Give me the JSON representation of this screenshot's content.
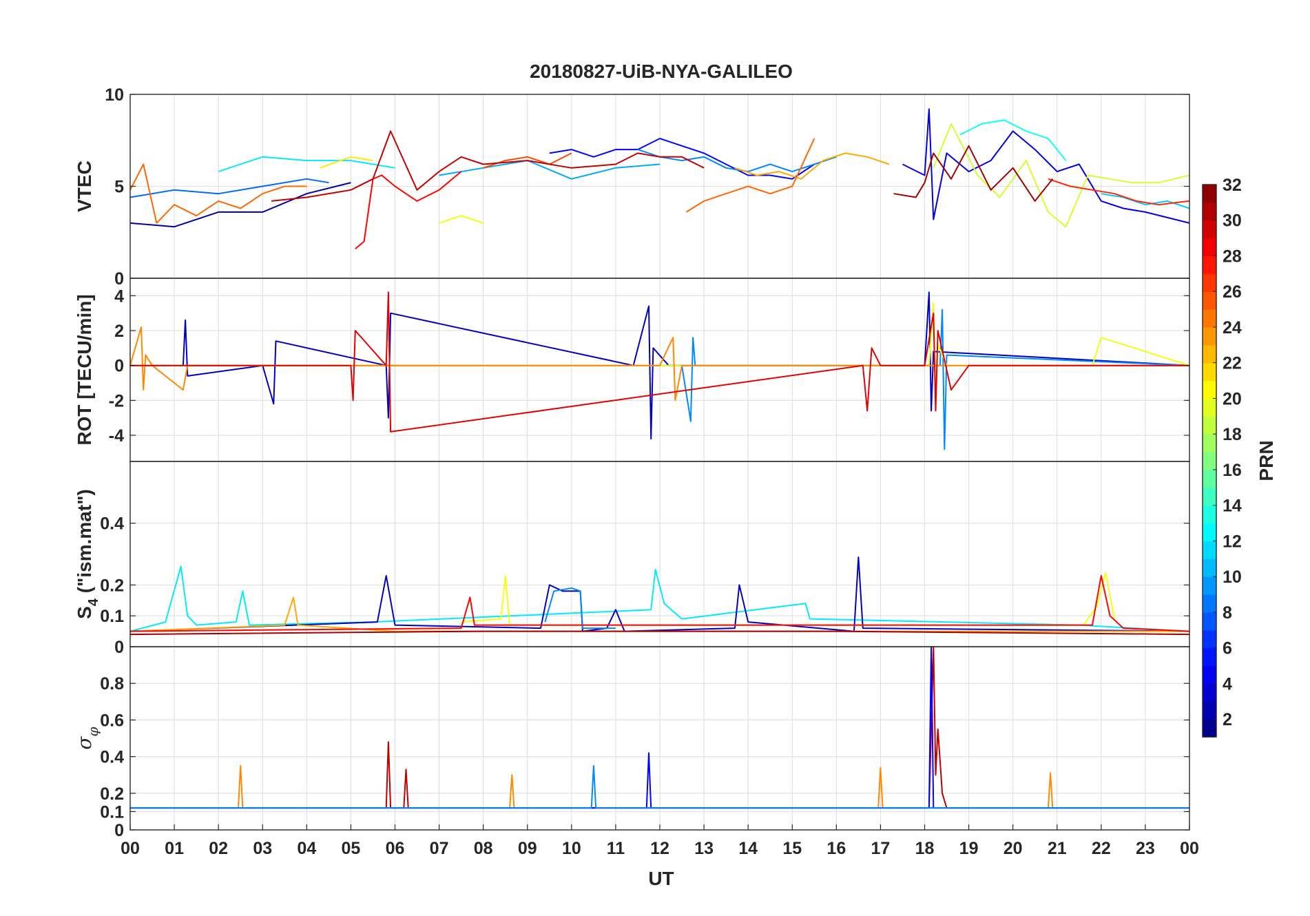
{
  "chart_data": {
    "type": "line",
    "title": "20180827-UiB-NYA-GALILEO",
    "xlabel": "UT",
    "x_unit": "hours (UT)",
    "xlim": [
      0,
      24
    ],
    "x_tick_labels": [
      "00",
      "01",
      "02",
      "03",
      "04",
      "05",
      "06",
      "07",
      "08",
      "09",
      "10",
      "11",
      "12",
      "13",
      "14",
      "15",
      "16",
      "17",
      "18",
      "19",
      "20",
      "21",
      "22",
      "23",
      "00"
    ],
    "grid": true,
    "colorbar": {
      "label": "PRN",
      "colormap": "jet",
      "range": [
        1,
        32
      ],
      "ticks": [
        2,
        4,
        6,
        8,
        10,
        12,
        14,
        16,
        18,
        20,
        22,
        24,
        26,
        28,
        30,
        32
      ]
    },
    "panels": [
      {
        "id": "vtec",
        "ylabel": "VTEC",
        "ylim": [
          0,
          10
        ],
        "yticks": [
          0,
          5,
          10
        ],
        "series": [
          {
            "prn": 2,
            "x": [
              0,
              1,
              2,
              3,
              4,
              5
            ],
            "y": [
              3.0,
              2.8,
              3.6,
              3.6,
              4.6,
              5.2
            ]
          },
          {
            "prn": 5,
            "x": [
              9.5,
              10,
              10.5,
              11,
              11.5,
              12,
              12.5,
              13,
              13.5,
              14,
              14.5,
              15,
              15.5
            ],
            "y": [
              6.8,
              7.0,
              6.6,
              7.0,
              7.0,
              7.6,
              7.2,
              6.8,
              6.2,
              5.6,
              5.6,
              5.4,
              6.2
            ]
          },
          {
            "prn": 4,
            "x": [
              17.5,
              18,
              18.1,
              18.2,
              18.5,
              19,
              19.5,
              20,
              20.5,
              21,
              21.5,
              22,
              22.5,
              23,
              24
            ],
            "y": [
              6.2,
              5.6,
              9.2,
              3.2,
              6.8,
              5.8,
              6.4,
              8.0,
              7.0,
              5.8,
              6.2,
              4.2,
              3.8,
              3.6,
              3.0
            ]
          },
          {
            "prn": 8,
            "x": [
              0,
              1,
              2,
              3,
              4,
              4.5
            ],
            "y": [
              4.4,
              4.8,
              4.6,
              5.0,
              5.4,
              5.2
            ]
          },
          {
            "prn": 9,
            "x": [
              11.5,
              12,
              12.5,
              13,
              13.5,
              14,
              14.5,
              15,
              15.5,
              16
            ],
            "y": [
              7.0,
              6.6,
              6.4,
              6.6,
              6.0,
              5.8,
              6.2,
              5.8,
              6.2,
              6.6
            ]
          },
          {
            "prn": 10,
            "x": [
              7,
              8,
              9,
              10,
              11,
              12
            ],
            "y": [
              5.6,
              6.0,
              6.4,
              5.4,
              6.0,
              6.2
            ]
          },
          {
            "prn": 12,
            "x": [
              2,
              3,
              4,
              5,
              6
            ],
            "y": [
              5.8,
              6.6,
              6.4,
              6.4,
              6.0
            ]
          },
          {
            "prn": 13,
            "x": [
              18.8,
              19.3,
              19.8,
              20.3,
              20.8,
              21.2
            ],
            "y": [
              7.8,
              8.4,
              8.6,
              8.0,
              7.6,
              6.4
            ]
          },
          {
            "prn": 11,
            "x": [
              22,
              22.5,
              23,
              23.5,
              24
            ],
            "y": [
              4.6,
              4.4,
              4.0,
              4.2,
              3.8
            ]
          },
          {
            "prn": 20,
            "x": [
              7,
              7.5,
              8
            ],
            "y": [
              3.0,
              3.4,
              3.0
            ]
          },
          {
            "prn": 21,
            "x": [
              4.3,
              5,
              5.5
            ],
            "y": [
              6.0,
              6.6,
              6.4
            ]
          },
          {
            "prn": 19,
            "x": [
              18.2,
              18.6,
              19.2,
              19.7,
              20.3,
              20.8,
              21.2,
              21.7,
              22.2,
              22.7,
              23.3,
              24
            ],
            "y": [
              6.0,
              8.4,
              5.6,
              4.4,
              6.4,
              3.6,
              2.8,
              5.6,
              5.4,
              5.2,
              5.2,
              5.6
            ]
          },
          {
            "prn": 23,
            "x": [
              13.7,
              14.2,
              14.7,
              15.2,
              15.7,
              16.2,
              16.7,
              17.2
            ],
            "y": [
              6.0,
              5.6,
              5.8,
              5.4,
              6.4,
              6.8,
              6.6,
              6.2
            ]
          },
          {
            "prn": 25,
            "x": [
              0,
              0.3,
              0.6,
              1,
              1.5,
              2,
              2.5,
              3,
              3.5,
              4
            ],
            "y": [
              4.8,
              6.2,
              3.0,
              4.0,
              3.4,
              4.2,
              3.8,
              4.6,
              5.0,
              5.0
            ]
          },
          {
            "prn": 25,
            "x": [
              12.6,
              13,
              13.5,
              14,
              14.5,
              15,
              15.5
            ],
            "y": [
              3.6,
              4.2,
              4.6,
              5.0,
              4.6,
              5.0,
              7.6
            ]
          },
          {
            "prn": 26,
            "x": [
              8,
              8.5,
              9,
              9.5,
              10
            ],
            "y": [
              6.0,
              6.4,
              6.6,
              6.2,
              6.8
            ]
          },
          {
            "prn": 28,
            "x": [
              5.1,
              5.3,
              5.5,
              5.7,
              6,
              6.5,
              7,
              7.5
            ],
            "y": [
              1.6,
              2.0,
              5.4,
              5.6,
              5.0,
              4.2,
              4.8,
              5.8
            ]
          },
          {
            "prn": 27,
            "x": [
              20.8,
              21.3,
              21.8,
              22.3,
              22.8,
              23.3,
              24
            ],
            "y": [
              5.4,
              5.0,
              4.8,
              4.6,
              4.2,
              4.0,
              4.2
            ]
          },
          {
            "prn": 30,
            "x": [
              3.2,
              4,
              5,
              5.5,
              5.9,
              6.5,
              7,
              7.5,
              8,
              9,
              10,
              11,
              11.5,
              12,
              12.5,
              13
            ],
            "y": [
              4.2,
              4.4,
              4.8,
              5.4,
              8.0,
              4.8,
              5.8,
              6.6,
              6.2,
              6.4,
              6.0,
              6.2,
              6.8,
              6.6,
              6.6,
              6.0
            ]
          },
          {
            "prn": 31,
            "x": [
              17.3,
              17.8,
              18,
              18.2,
              18.6,
              19,
              19.5,
              20,
              20.5,
              20.9
            ],
            "y": [
              4.6,
              4.4,
              5.2,
              6.8,
              5.4,
              7.2,
              4.8,
              6.0,
              4.2,
              5.4
            ]
          }
        ]
      },
      {
        "id": "rot",
        "ylabel": "ROT [TECU/min]",
        "ylim": [
          -5.5,
          5
        ],
        "yticks": [
          -4,
          -2,
          0,
          2,
          4
        ],
        "series": [
          {
            "prn": 3,
            "x": [
              0,
              1.2,
              1.25,
              1.3,
              3,
              3.25,
              3.3,
              5.8,
              5.85,
              5.9,
              11.4,
              11.75,
              11.8,
              11.85,
              12.2,
              18.0,
              18.1,
              18.15,
              18.2,
              24
            ],
            "y": [
              0,
              0,
              2.6,
              -0.6,
              0,
              -2.2,
              1.4,
              0,
              -3.0,
              3.0,
              0,
              3.4,
              -4.2,
              1.0,
              0,
              0,
              4.2,
              -2.6,
              0.8,
              0
            ]
          },
          {
            "prn": 9,
            "x": [
              0,
              12.5,
              12.7,
              12.75,
              12.8,
              13.0,
              18.35,
              18.4,
              18.45,
              18.5,
              24
            ],
            "y": [
              0,
              0,
              -3.2,
              1.6,
              0,
              0,
              0,
              3.2,
              -4.8,
              0.6,
              0
            ]
          },
          {
            "prn": 20,
            "x": [
              0,
              18.1,
              18.2,
              18.25,
              18.3,
              18.5,
              21.8,
              22.0,
              24
            ],
            "y": [
              0,
              0,
              3.6,
              -2.0,
              1.2,
              0,
              0,
              1.6,
              0
            ]
          },
          {
            "prn": 24,
            "x": [
              0,
              0.25,
              0.3,
              0.35,
              0.5,
              1.2,
              1.3,
              12.0,
              12.3,
              12.35,
              12.5,
              24
            ],
            "y": [
              0,
              2.2,
              -1.4,
              0.6,
              0,
              -1.4,
              0,
              0,
              1.6,
              -2.0,
              0,
              0
            ]
          },
          {
            "prn": 29,
            "x": [
              0,
              5.0,
              5.05,
              5.1,
              5.8,
              5.85,
              5.9,
              16.6,
              16.7,
              16.8,
              17.0,
              18.0,
              18.2,
              18.25,
              18.3,
              18.6,
              19.0,
              24
            ],
            "y": [
              0,
              0,
              -2.0,
              2.0,
              0,
              4.2,
              -3.8,
              0,
              -2.6,
              1.0,
              0,
              0,
              3.0,
              -2.6,
              2.0,
              -1.4,
              0,
              0
            ]
          }
        ]
      },
      {
        "id": "s4",
        "ylabel": "S4 (\"ism.mat\")",
        "ylabel_main": "S",
        "ylabel_sub": "4",
        "ylabel_rest": " (\"ism.mat\")",
        "ylim": [
          0,
          0.6
        ],
        "yticks": [
          0,
          0.1,
          0.2,
          0.4
        ],
        "series": [
          {
            "prn": 12,
            "x": [
              0,
              0.8,
              1.15,
              1.3,
              1.5,
              2.4,
              2.55,
              2.7,
              5.5,
              11.8,
              11.9,
              12.1,
              12.5,
              15.3,
              15.4,
              21.5,
              24
            ],
            "y": [
              0.05,
              0.08,
              0.26,
              0.1,
              0.07,
              0.08,
              0.18,
              0.07,
              0.08,
              0.12,
              0.25,
              0.14,
              0.09,
              0.14,
              0.09,
              0.07,
              0.05
            ]
          },
          {
            "prn": 3,
            "x": [
              0,
              5.6,
              5.8,
              6.0,
              9.3,
              9.5,
              9.8,
              10.2,
              10.25,
              10.8,
              11.0,
              11.2,
              13.7,
              13.8,
              14.0,
              16.4,
              16.5,
              16.6,
              24
            ],
            "y": [
              0.05,
              0.08,
              0.23,
              0.07,
              0.06,
              0.2,
              0.18,
              0.18,
              0.05,
              0.06,
              0.12,
              0.05,
              0.06,
              0.2,
              0.08,
              0.05,
              0.29,
              0.06,
              0.05
            ]
          },
          {
            "prn": 9,
            "x": [
              9.4,
              9.6,
              10.0,
              10.2,
              10.25,
              11.0
            ],
            "y": [
              0.08,
              0.18,
              0.19,
              0.18,
              0.06,
              0.06
            ]
          },
          {
            "prn": 20,
            "x": [
              7.5,
              8.4,
              8.5,
              8.6,
              21.6,
              21.9,
              22.1,
              22.3
            ],
            "y": [
              0.08,
              0.09,
              0.23,
              0.07,
              0.07,
              0.13,
              0.24,
              0.09
            ]
          },
          {
            "prn": 23,
            "x": [
              0,
              3.5,
              3.7,
              3.8,
              6.0,
              24
            ],
            "y": [
              0.05,
              0.07,
              0.16,
              0.07,
              0.05,
              0.05
            ]
          },
          {
            "prn": 28,
            "x": [
              0,
              7.5,
              7.7,
              7.8,
              21.8,
              22.0,
              22.2,
              22.5,
              24
            ],
            "y": [
              0.05,
              0.06,
              0.16,
              0.07,
              0.07,
              0.23,
              0.1,
              0.06,
              0.05
            ]
          },
          {
            "prn": 31,
            "x": [
              0,
              8,
              16,
              24
            ],
            "y": [
              0.04,
              0.05,
              0.05,
              0.04
            ]
          }
        ]
      },
      {
        "id": "sigma-phi",
        "ylabel": "σφ",
        "ylabel_main": "σ",
        "ylabel_sub": "φ",
        "ylim": [
          0,
          1
        ],
        "yticks": [
          0,
          0.1,
          0.2,
          0.4,
          0.6,
          0.8
        ],
        "series": [
          {
            "prn": 24,
            "x": [
              0,
              2.45,
              2.5,
              2.55,
              8.6,
              8.65,
              8.7,
              16.95,
              17.0,
              17.05,
              20.8,
              20.85,
              20.9,
              24
            ],
            "y": [
              0.12,
              0.12,
              0.35,
              0.12,
              0.12,
              0.3,
              0.12,
              0.12,
              0.34,
              0.12,
              0.12,
              0.31,
              0.12,
              0.12
            ]
          },
          {
            "prn": 30,
            "x": [
              0,
              5.8,
              5.85,
              5.9,
              6.2,
              6.25,
              6.3,
              18.1,
              18.2,
              18.25,
              18.3,
              18.4,
              18.5,
              24
            ],
            "y": [
              0.12,
              0.12,
              0.48,
              0.12,
              0.12,
              0.33,
              0.12,
              0.12,
              1.0,
              0.3,
              0.55,
              0.2,
              0.12,
              0.12
            ]
          },
          {
            "prn": 5,
            "x": [
              0,
              11.7,
              11.75,
              11.8,
              18.1,
              18.15,
              18.2,
              24
            ],
            "y": [
              0.12,
              0.12,
              0.42,
              0.12,
              0.12,
              1.0,
              0.12,
              0.12
            ]
          },
          {
            "prn": 9,
            "x": [
              0,
              10.45,
              10.5,
              10.55,
              24
            ],
            "y": [
              0.12,
              0.12,
              0.35,
              0.12,
              0.12
            ]
          }
        ]
      }
    ]
  }
}
